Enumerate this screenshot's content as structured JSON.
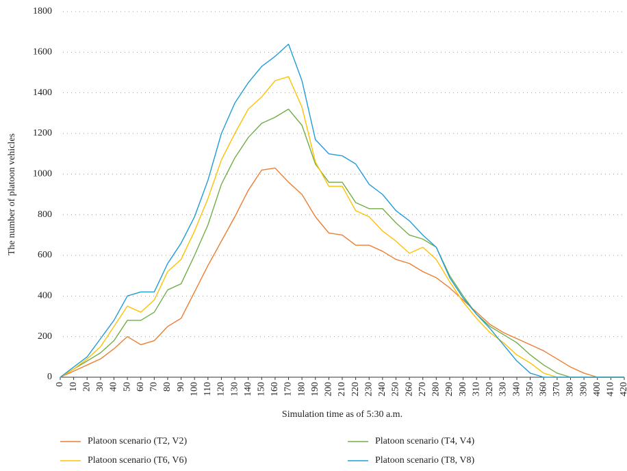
{
  "chart_data": {
    "type": "line",
    "x_label": "Simulation time as of 5:30 a.m.",
    "y_label": "The number of platoon vehicles",
    "x": [
      0,
      10,
      20,
      30,
      40,
      50,
      60,
      70,
      80,
      90,
      100,
      110,
      120,
      130,
      140,
      150,
      160,
      170,
      180,
      190,
      200,
      210,
      220,
      230,
      240,
      250,
      260,
      270,
      280,
      290,
      300,
      310,
      320,
      330,
      340,
      350,
      360,
      370,
      380,
      390,
      400,
      410,
      420
    ],
    "xlim": [
      0,
      420
    ],
    "xticks": [
      0,
      10,
      20,
      30,
      40,
      50,
      60,
      70,
      80,
      90,
      100,
      110,
      120,
      130,
      140,
      150,
      160,
      170,
      180,
      190,
      200,
      210,
      220,
      230,
      240,
      250,
      260,
      270,
      280,
      290,
      300,
      310,
      320,
      330,
      340,
      350,
      360,
      370,
      380,
      390,
      400,
      410,
      420
    ],
    "ylim": [
      0,
      1800
    ],
    "yticks": [
      0,
      200,
      400,
      600,
      800,
      1000,
      1200,
      1400,
      1600,
      1800
    ],
    "grid": true,
    "legend": "bottom",
    "series": [
      {
        "name": "Platoon scenario (T2, V2)",
        "color": "#ed7d31",
        "values": [
          0,
          30,
          60,
          90,
          140,
          200,
          160,
          180,
          250,
          290,
          420,
          550,
          670,
          790,
          920,
          1020,
          1030,
          960,
          900,
          790,
          710,
          700,
          650,
          650,
          620,
          580,
          560,
          520,
          490,
          440,
          380,
          320,
          260,
          220,
          190,
          160,
          130,
          90,
          50,
          20,
          0,
          0,
          0
        ]
      },
      {
        "name": "Platoon scenario (T4, V4)",
        "color": "#70ad47",
        "values": [
          0,
          40,
          80,
          120,
          180,
          280,
          280,
          320,
          430,
          460,
          600,
          750,
          950,
          1080,
          1180,
          1250,
          1280,
          1320,
          1240,
          1050,
          960,
          960,
          860,
          830,
          830,
          760,
          700,
          680,
          640,
          500,
          400,
          310,
          250,
          210,
          170,
          110,
          60,
          20,
          0,
          0,
          0,
          0,
          0
        ]
      },
      {
        "name": "Platoon scenario (T6, V6)",
        "color": "#ffc000",
        "values": [
          0,
          40,
          90,
          150,
          250,
          350,
          320,
          380,
          520,
          580,
          720,
          880,
          1070,
          1200,
          1320,
          1380,
          1460,
          1480,
          1330,
          1060,
          940,
          940,
          820,
          790,
          720,
          670,
          610,
          640,
          580,
          470,
          370,
          290,
          220,
          170,
          110,
          70,
          20,
          0,
          0,
          0,
          0,
          0,
          0
        ]
      },
      {
        "name": "Platoon scenario (T8, V8)",
        "color": "#1f9bd7",
        "values": [
          0,
          50,
          100,
          190,
          280,
          400,
          420,
          420,
          560,
          660,
          790,
          970,
          1200,
          1350,
          1450,
          1530,
          1580,
          1640,
          1460,
          1170,
          1100,
          1090,
          1050,
          950,
          900,
          820,
          770,
          700,
          640,
          490,
          390,
          310,
          240,
          160,
          80,
          20,
          0,
          0,
          0,
          0,
          0,
          0,
          0
        ]
      }
    ]
  }
}
